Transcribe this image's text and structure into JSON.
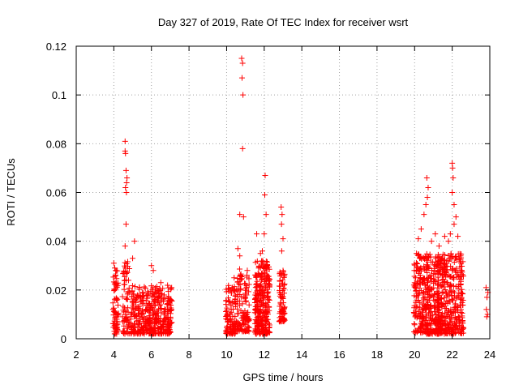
{
  "chart_data": {
    "type": "scatter",
    "title": "Day 327 of 2019, Rate Of TEC Index for receiver wsrt",
    "xlabel": "GPS time / hours",
    "ylabel": "ROTI / TECUs",
    "xlim": [
      2,
      24
    ],
    "ylim": [
      0,
      0.12
    ],
    "xticks": [
      2,
      4,
      6,
      8,
      10,
      12,
      14,
      16,
      18,
      20,
      22,
      24
    ],
    "yticks": [
      0,
      0.02,
      0.04,
      0.06,
      0.08,
      0.1,
      0.12
    ],
    "ytick_labels": [
      "0",
      "0.02",
      "0.04",
      "0.06",
      "0.08",
      "0.1",
      "0.12"
    ],
    "grid": true,
    "marker": "+",
    "color": "#ff0000",
    "series": [
      {
        "name": "ROTI",
        "points": [
          [
            4.0,
            0.031
          ],
          [
            4.05,
            0.029
          ],
          [
            4.1,
            0.028
          ],
          [
            4.6,
            0.081
          ],
          [
            4.6,
            0.077
          ],
          [
            4.62,
            0.076
          ],
          [
            4.65,
            0.069
          ],
          [
            4.7,
            0.066
          ],
          [
            4.68,
            0.064
          ],
          [
            4.62,
            0.062
          ],
          [
            4.67,
            0.06
          ],
          [
            4.65,
            0.047
          ],
          [
            4.6,
            0.038
          ],
          [
            5.1,
            0.04
          ],
          [
            5.0,
            0.033
          ],
          [
            6.0,
            0.03
          ],
          [
            6.1,
            0.028
          ],
          [
            6.5,
            0.023
          ],
          [
            10.2,
            0.02
          ],
          [
            10.4,
            0.025
          ],
          [
            10.8,
            0.115
          ],
          [
            10.85,
            0.113
          ],
          [
            10.82,
            0.107
          ],
          [
            10.87,
            0.1
          ],
          [
            10.85,
            0.078
          ],
          [
            10.7,
            0.051
          ],
          [
            10.9,
            0.05
          ],
          [
            10.6,
            0.037
          ],
          [
            10.7,
            0.034
          ],
          [
            11.1,
            0.028
          ],
          [
            11.6,
            0.043
          ],
          [
            11.8,
            0.035
          ],
          [
            12.05,
            0.067
          ],
          [
            12.03,
            0.059
          ],
          [
            12.1,
            0.051
          ],
          [
            12.0,
            0.043
          ],
          [
            11.9,
            0.036
          ],
          [
            12.9,
            0.054
          ],
          [
            12.95,
            0.051
          ],
          [
            12.92,
            0.047
          ],
          [
            13.0,
            0.041
          ],
          [
            12.93,
            0.036
          ],
          [
            20.1,
            0.035
          ],
          [
            20.2,
            0.041
          ],
          [
            20.35,
            0.045
          ],
          [
            20.5,
            0.051
          ],
          [
            20.6,
            0.055
          ],
          [
            20.65,
            0.066
          ],
          [
            20.72,
            0.062
          ],
          [
            20.68,
            0.058
          ],
          [
            20.9,
            0.04
          ],
          [
            21.1,
            0.043
          ],
          [
            21.3,
            0.038
          ],
          [
            21.6,
            0.042
          ],
          [
            21.8,
            0.04
          ],
          [
            22.0,
            0.072
          ],
          [
            22.02,
            0.07
          ],
          [
            22.05,
            0.066
          ],
          [
            22.0,
            0.06
          ],
          [
            22.1,
            0.055
          ],
          [
            22.2,
            0.05
          ],
          [
            22.1,
            0.047
          ],
          [
            21.9,
            0.043
          ],
          [
            22.3,
            0.042
          ],
          [
            22.45,
            0.034
          ],
          [
            22.5,
            0.028
          ],
          [
            23.8,
            0.021
          ],
          [
            23.9,
            0.019
          ],
          [
            23.85,
            0.017
          ],
          [
            23.82,
            0.012
          ],
          [
            23.88,
            0.01
          ],
          [
            23.84,
            0.009
          ]
        ],
        "dense_clusters": [
          {
            "x_range": [
              3.95,
              4.25
            ],
            "y_range": [
              0.002,
              0.028
            ],
            "count": 70
          },
          {
            "x_range": [
              4.45,
              4.85
            ],
            "y_range": [
              0.002,
              0.032
            ],
            "count": 70
          },
          {
            "x_range": [
              4.9,
              7.1
            ],
            "y_range": [
              0.002,
              0.022
            ],
            "count": 420
          },
          {
            "x_range": [
              9.95,
              10.5
            ],
            "y_range": [
              0.002,
              0.022
            ],
            "count": 110
          },
          {
            "x_range": [
              10.5,
              11.2
            ],
            "y_range": [
              0.003,
              0.03
            ],
            "count": 120
          },
          {
            "x_range": [
              11.5,
              12.3
            ],
            "y_range": [
              0.002,
              0.032
            ],
            "count": 280
          },
          {
            "x_range": [
              12.8,
              13.1
            ],
            "y_range": [
              0.007,
              0.028
            ],
            "count": 80
          },
          {
            "x_range": [
              19.95,
              21.3
            ],
            "y_range": [
              0.002,
              0.035
            ],
            "count": 360
          },
          {
            "x_range": [
              21.2,
              22.6
            ],
            "y_range": [
              0.002,
              0.035
            ],
            "count": 380
          }
        ]
      }
    ]
  }
}
